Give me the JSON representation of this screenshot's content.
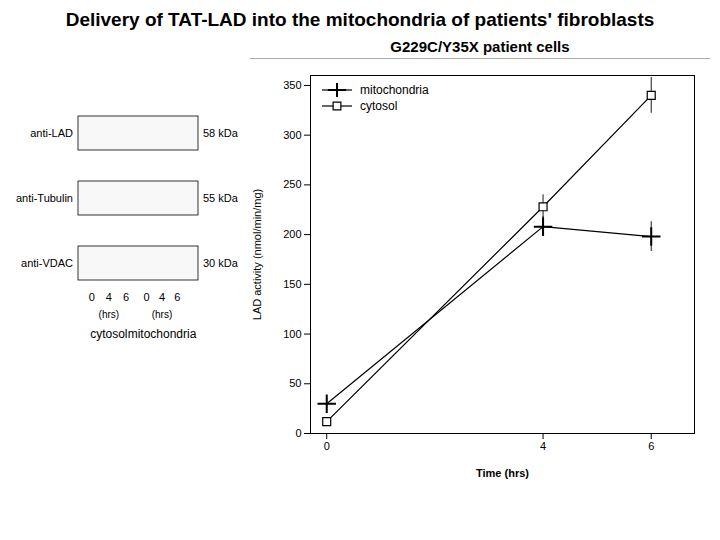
{
  "chart_data": {
    "type": "line",
    "title": "Delivery of TAT-LAD into the mitochondria of patients' fibroblasts",
    "subtitle": "G229C/Y35X patient cells",
    "x": [
      0,
      4,
      6
    ],
    "series": [
      {
        "name": "mitochondria",
        "color": "#000000",
        "marker": "plus",
        "values": [
          30,
          208,
          198
        ],
        "errors": [
          5,
          10,
          15
        ]
      },
      {
        "name": "cytosol",
        "color": "#000000",
        "marker": "square",
        "values": [
          12,
          228,
          340
        ],
        "errors": [
          3,
          12,
          18
        ]
      }
    ],
    "xlabel": "Time (hrs)",
    "ylabel": "LAD activity (nmol/min/mg)",
    "xlim": [
      -0.3,
      6.8
    ],
    "xticks": [
      0,
      4,
      6
    ],
    "ylim": [
      0,
      360
    ],
    "yticks": [
      0,
      50,
      100,
      150,
      200,
      250,
      300,
      350
    ],
    "grid": false,
    "legend": "upper left",
    "annotations": [
      "anti-LAD",
      "58 kDa",
      "anti-Tubulin",
      "55 kDa",
      "anti-VDAC",
      "30 kDa",
      "0",
      "4",
      "6",
      "0",
      "4",
      "6",
      "(hrs)",
      "(hrs)",
      "cytosol",
      "mitochondria"
    ]
  }
}
